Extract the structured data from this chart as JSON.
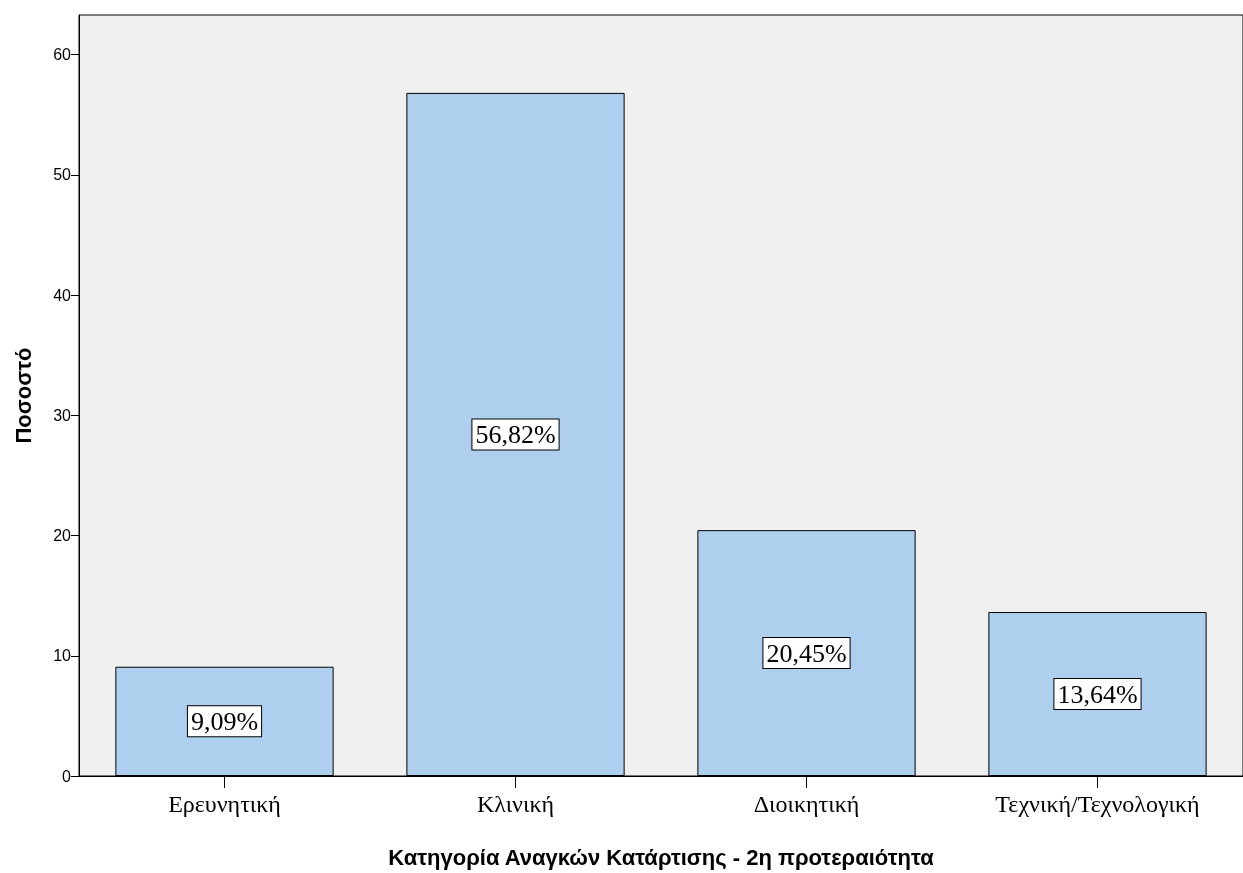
{
  "chart_data": {
    "type": "bar",
    "xlabel": "Κατηγορία Αναγκών Κατάρτισης - 2η προτεραιότητα",
    "ylabel": "Ποσοστό",
    "categories": [
      "Ερευνητική",
      "Κλινική",
      "Διοικητική",
      "Τεχνική/Τεχνολογική"
    ],
    "values": [
      9.09,
      56.82,
      20.45,
      13.64
    ],
    "value_labels": [
      "9,09%",
      "56,82%",
      "20,45%",
      "13,64%"
    ],
    "color": "#aed0ee",
    "ylim": [
      0,
      63.3
    ],
    "yticks": [
      0,
      10,
      20,
      30,
      40,
      50,
      60
    ],
    "grid": false
  }
}
